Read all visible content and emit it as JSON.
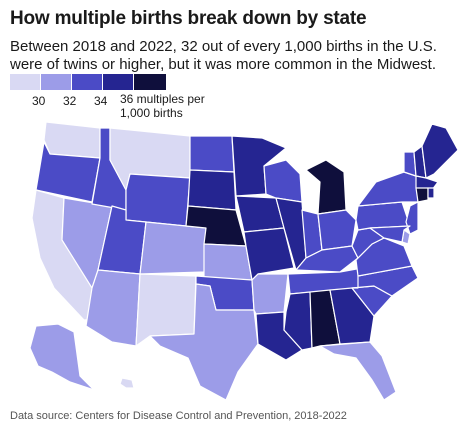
{
  "header": {
    "title": "How multiple births break down by state",
    "subtitle": "Between 2018 and 2022, 32 out of every 1,000 births in the U.S. were of twins or higher, but it was more common in the Midwest."
  },
  "legend": {
    "labels": [
      "30",
      "32",
      "34"
    ],
    "last_label_line1": "36 multiples per",
    "last_label_line2": "1,000 births",
    "colors": [
      "#d9d9f3",
      "#9c9ce8",
      "#4b4bc6",
      "#252591",
      "#0f0f3c"
    ]
  },
  "source": "Data source: Centers for Disease Control and Prevention, 2018-2022",
  "map": {
    "scale": {
      "bins": [
        30,
        32,
        34,
        36
      ],
      "colors": [
        "#d9d9f3",
        "#9c9ce8",
        "#4b4bc6",
        "#252591",
        "#0f0f3c"
      ]
    },
    "states": [
      {
        "id": "WA",
        "level": 0
      },
      {
        "id": "OR",
        "level": 2
      },
      {
        "id": "CA",
        "level": 0
      },
      {
        "id": "NV",
        "level": 1
      },
      {
        "id": "ID",
        "level": 2
      },
      {
        "id": "MT",
        "level": 0
      },
      {
        "id": "WY",
        "level": 2
      },
      {
        "id": "UT",
        "level": 2
      },
      {
        "id": "AZ",
        "level": 1
      },
      {
        "id": "CO",
        "level": 1
      },
      {
        "id": "NM",
        "level": 0
      },
      {
        "id": "ND",
        "level": 2
      },
      {
        "id": "SD",
        "level": 3
      },
      {
        "id": "NE",
        "level": 4
      },
      {
        "id": "KS",
        "level": 1
      },
      {
        "id": "OK",
        "level": 2
      },
      {
        "id": "TX",
        "level": 1
      },
      {
        "id": "MN",
        "level": 3
      },
      {
        "id": "IA",
        "level": 3
      },
      {
        "id": "MO",
        "level": 3
      },
      {
        "id": "AR",
        "level": 1
      },
      {
        "id": "LA",
        "level": 3
      },
      {
        "id": "WI",
        "level": 2
      },
      {
        "id": "IL",
        "level": 3
      },
      {
        "id": "MI",
        "level": 4
      },
      {
        "id": "IN",
        "level": 2
      },
      {
        "id": "OH",
        "level": 2
      },
      {
        "id": "KY",
        "level": 2
      },
      {
        "id": "TN",
        "level": 2
      },
      {
        "id": "MS",
        "level": 3
      },
      {
        "id": "AL",
        "level": 4
      },
      {
        "id": "GA",
        "level": 3
      },
      {
        "id": "FL",
        "level": 1
      },
      {
        "id": "SC",
        "level": 2
      },
      {
        "id": "NC",
        "level": 2
      },
      {
        "id": "VA",
        "level": 2
      },
      {
        "id": "WV",
        "level": 2
      },
      {
        "id": "PA",
        "level": 2
      },
      {
        "id": "NY",
        "level": 2
      },
      {
        "id": "VT",
        "level": 2
      },
      {
        "id": "NH",
        "level": 3
      },
      {
        "id": "ME",
        "level": 3
      },
      {
        "id": "MA",
        "level": 3
      },
      {
        "id": "CT",
        "level": 4
      },
      {
        "id": "RI",
        "level": 3
      },
      {
        "id": "NJ",
        "level": 2
      },
      {
        "id": "DE",
        "level": 1
      },
      {
        "id": "MD",
        "level": 2
      },
      {
        "id": "AK",
        "level": 1
      },
      {
        "id": "HI",
        "level": 0
      }
    ]
  }
}
